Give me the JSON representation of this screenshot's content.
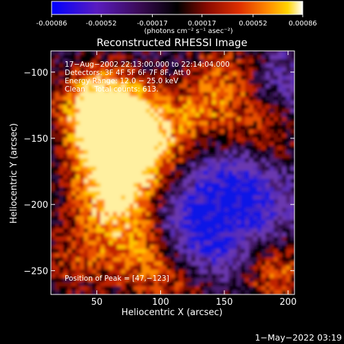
{
  "chart_data": {
    "type": "heatmap",
    "colorbar": {
      "ticks": [
        "-0.00086",
        "-0.00052",
        "-0.00017",
        "0.00017",
        "0.00052",
        "0.00086"
      ],
      "vmin": -0.00086,
      "vmax": 0.00086,
      "unit_label": "(photons cm⁻² s⁻¹ asec⁻²)",
      "colormap": [
        "#0000ff",
        "#6a1fb8",
        "#4a1060",
        "#000000",
        "#8a0a00",
        "#e03000",
        "#ff8a00",
        "#ffd400",
        "#ffffff"
      ]
    },
    "title": "Reconstructed RHESSI Image",
    "xlabel": "Heliocentric X (arcsec)",
    "ylabel": "Heliocentric Y (arcsec)",
    "xlim": [
      14,
      205
    ],
    "ylim": [
      -268,
      -84
    ],
    "xticks": [
      "50",
      "100",
      "150",
      "200"
    ],
    "xtick_values": [
      50,
      100,
      150,
      200
    ],
    "yticks": [
      "−100",
      "−150",
      "−200",
      "−250"
    ],
    "ytick_values": [
      -100,
      -150,
      -200,
      -250
    ],
    "info_lines": [
      "17−Aug−2002 22:13:00.000 to 22:14:04.000",
      "Detectors: 3F 4F 5F 6F 7F 8F, Att 0",
      "Energy Range: 12.0 − 25.0 keV",
      "Clean    Total counts: 613."
    ],
    "peak_label": "Position of Peak = [47,−123]",
    "peak": [
      47,
      -123
    ]
  },
  "footer": {
    "date": "1−May−2022 03:19"
  }
}
